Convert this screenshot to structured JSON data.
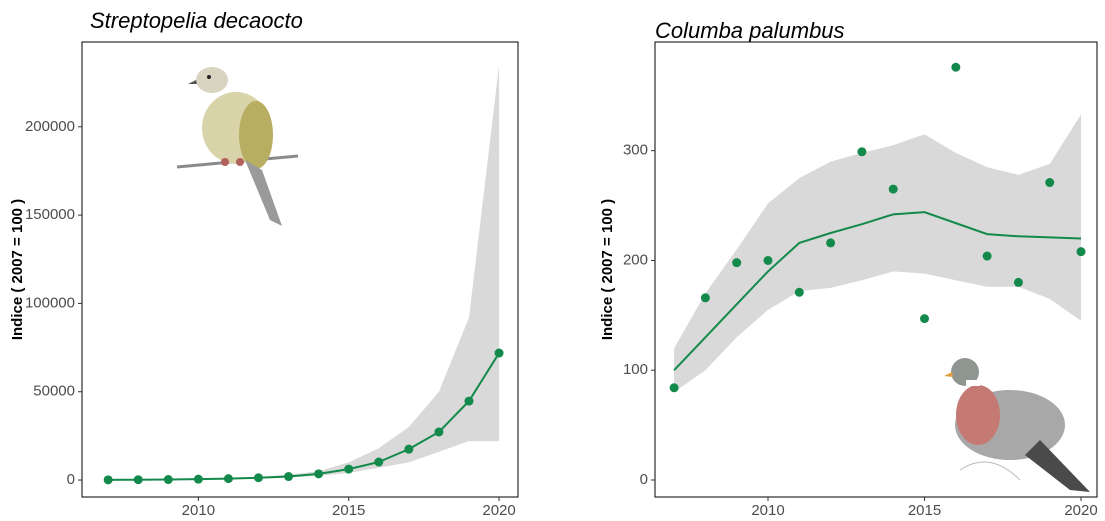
{
  "chart_data": [
    {
      "type": "line",
      "title": "Streptopelia decaocto",
      "y_label": "Indice ( 2007 = 100 )",
      "color": "#138a4b",
      "band_color": "#d9d9d9",
      "x": [
        2007,
        2008,
        2009,
        2010,
        2011,
        2012,
        2013,
        2014,
        2015,
        2016,
        2017,
        2018,
        2019,
        2020
      ],
      "values": [
        100,
        200,
        300,
        500,
        800,
        1300,
        2000,
        3500,
        6200,
        10200,
        17500,
        27200,
        44700,
        71900
      ],
      "band_upper": [
        150,
        300,
        450,
        700,
        1100,
        1800,
        3000,
        5000,
        10000,
        18000,
        30000,
        50000,
        92000,
        235000
      ],
      "band_lower": [
        60,
        120,
        200,
        350,
        550,
        900,
        1400,
        2400,
        4000,
        7000,
        10000,
        16000,
        22000,
        22000
      ],
      "xlim": [
        2006.13,
        2020.63
      ],
      "xticks": [
        2010,
        2015,
        2020
      ],
      "ylim": [
        -9600,
        248000
      ],
      "yticks": [
        0,
        50000,
        100000,
        150000,
        200000
      ]
    },
    {
      "type": "scatter",
      "title": "Columba palumbus",
      "y_label": "Indice ( 2007 = 100 )",
      "color": "#138a4b",
      "band_color": "#d9d9d9",
      "x": [
        2007,
        2008,
        2009,
        2010,
        2011,
        2012,
        2013,
        2014,
        2015,
        2016,
        2017,
        2018,
        2019,
        2020
      ],
      "values": [
        84,
        166,
        198,
        200,
        171,
        216,
        299,
        265,
        147,
        376,
        204,
        180,
        271,
        208
      ],
      "fit": [
        100,
        130,
        160,
        190,
        216,
        225,
        233,
        242,
        244,
        234,
        224,
        222,
        221,
        220
      ],
      "band_upper": [
        120,
        170,
        210,
        252,
        275,
        290,
        298,
        305,
        315,
        298,
        285,
        278,
        288,
        333
      ],
      "band_lower": [
        80,
        100,
        130,
        155,
        172,
        175,
        182,
        190,
        188,
        182,
        176,
        176,
        165,
        145
      ],
      "xlim": [
        2006.39,
        2020.51
      ],
      "xticks": [
        2010,
        2015,
        2020
      ],
      "ylim": [
        -15.5,
        399
      ],
      "yticks": [
        0,
        100,
        200,
        300
      ]
    }
  ]
}
